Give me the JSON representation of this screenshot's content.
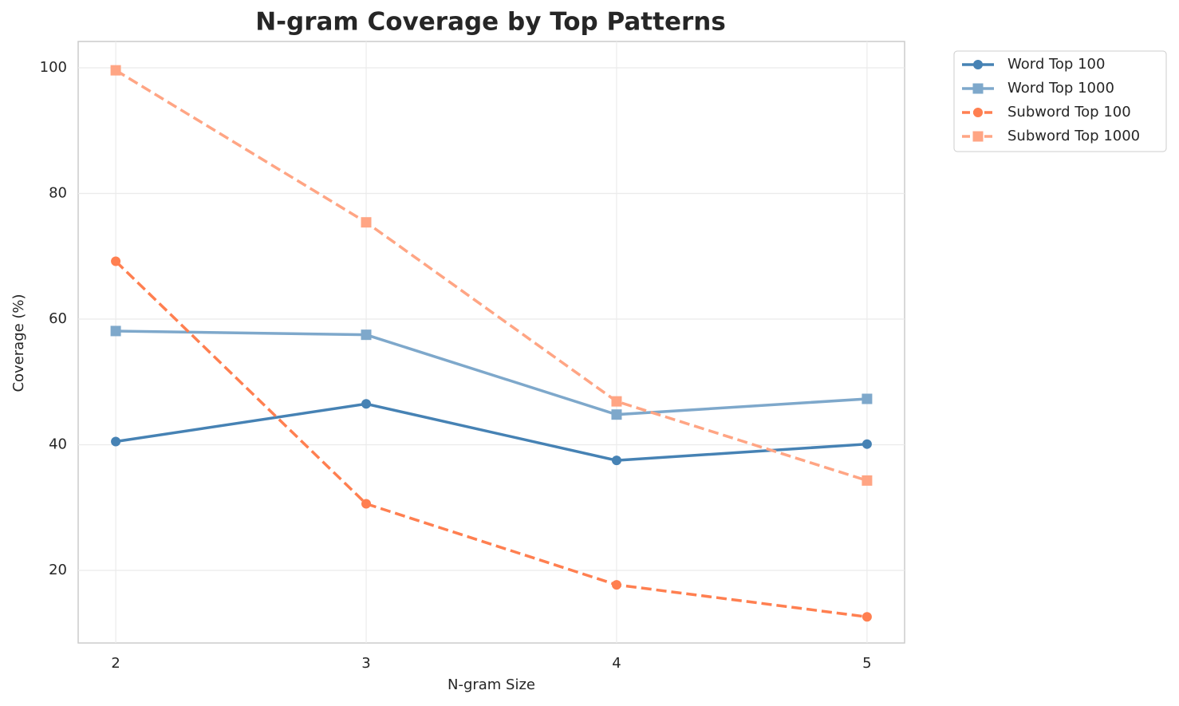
{
  "chart_data": {
    "type": "line",
    "title": "N-gram Coverage by Top Patterns",
    "xlabel": "N-gram Size",
    "ylabel": "Coverage (%)",
    "x": [
      2,
      3,
      4,
      5
    ],
    "series": [
      {
        "name": "Word Top 100",
        "color": "#4682b4",
        "dash": "solid",
        "marker": "circle",
        "values": [
          40.5,
          46.5,
          37.5,
          40.1
        ]
      },
      {
        "name": "Word Top 1000",
        "color": "#7ea8cb",
        "dash": "solid",
        "marker": "square",
        "values": [
          58.1,
          57.5,
          44.8,
          47.3
        ]
      },
      {
        "name": "Subword Top 100",
        "color": "#ff7f50",
        "dash": "dashed",
        "marker": "circle",
        "values": [
          69.2,
          30.6,
          17.7,
          12.6
        ]
      },
      {
        "name": "Subword Top 1000",
        "color": "#ffa584",
        "dash": "dashed",
        "marker": "square",
        "values": [
          99.6,
          75.4,
          46.9,
          34.3
        ]
      }
    ],
    "xlim": [
      1.85,
      5.15
    ],
    "xticks": [
      2,
      3,
      4,
      5
    ],
    "ylim": [
      8.44,
      104.19
    ],
    "yticks": [
      20,
      40,
      60,
      80,
      100
    ],
    "grid": true,
    "legend": "outside-upper-right"
  }
}
